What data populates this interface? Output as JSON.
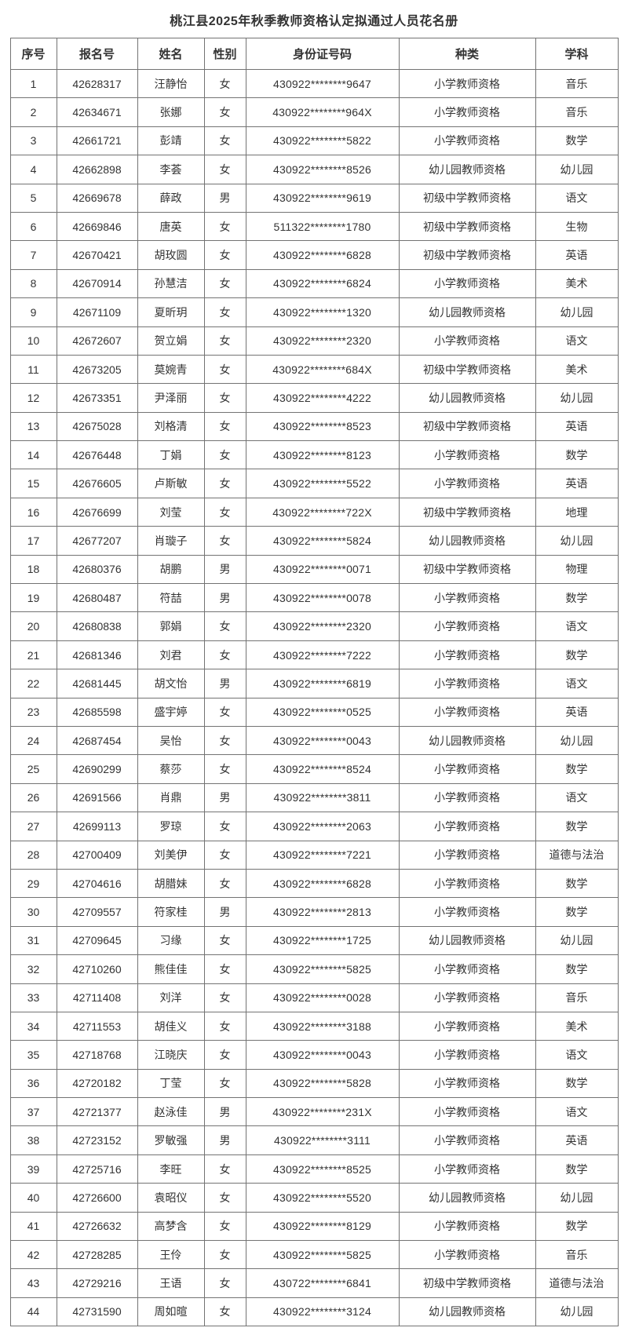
{
  "page": {
    "title": "桃江县2025年秋季教师资格认定拟通过人员花名册"
  },
  "table": {
    "headers": [
      "序号",
      "报名号",
      "姓名",
      "性别",
      "身份证号码",
      "种类",
      "学科"
    ],
    "rows": [
      [
        "1",
        "42628317",
        "汪静怡",
        "女",
        "430922********9647",
        "小学教师资格",
        "音乐"
      ],
      [
        "2",
        "42634671",
        "张娜",
        "女",
        "430922********964X",
        "小学教师资格",
        "音乐"
      ],
      [
        "3",
        "42661721",
        "彭靖",
        "女",
        "430922********5822",
        "小学教师资格",
        "数学"
      ],
      [
        "4",
        "42662898",
        "李荟",
        "女",
        "430922********8526",
        "幼儿园教师资格",
        "幼儿园"
      ],
      [
        "5",
        "42669678",
        "薛政",
        "男",
        "430922********9619",
        "初级中学教师资格",
        "语文"
      ],
      [
        "6",
        "42669846",
        "唐英",
        "女",
        "511322********1780",
        "初级中学教师资格",
        "生物"
      ],
      [
        "7",
        "42670421",
        "胡玫圆",
        "女",
        "430922********6828",
        "初级中学教师资格",
        "英语"
      ],
      [
        "8",
        "42670914",
        "孙慧洁",
        "女",
        "430922********6824",
        "小学教师资格",
        "美术"
      ],
      [
        "9",
        "42671109",
        "夏昕玥",
        "女",
        "430922********1320",
        "幼儿园教师资格",
        "幼儿园"
      ],
      [
        "10",
        "42672607",
        "贺立娟",
        "女",
        "430922********2320",
        "小学教师资格",
        "语文"
      ],
      [
        "11",
        "42673205",
        "莫婉青",
        "女",
        "430922********684X",
        "初级中学教师资格",
        "美术"
      ],
      [
        "12",
        "42673351",
        "尹泽丽",
        "女",
        "430922********4222",
        "幼儿园教师资格",
        "幼儿园"
      ],
      [
        "13",
        "42675028",
        "刘格清",
        "女",
        "430922********8523",
        "初级中学教师资格",
        "英语"
      ],
      [
        "14",
        "42676448",
        "丁娟",
        "女",
        "430922********8123",
        "小学教师资格",
        "数学"
      ],
      [
        "15",
        "42676605",
        "卢斯敏",
        "女",
        "430922********5522",
        "小学教师资格",
        "英语"
      ],
      [
        "16",
        "42676699",
        "刘莹",
        "女",
        "430922********722X",
        "初级中学教师资格",
        "地理"
      ],
      [
        "17",
        "42677207",
        "肖璇子",
        "女",
        "430922********5824",
        "幼儿园教师资格",
        "幼儿园"
      ],
      [
        "18",
        "42680376",
        "胡鹏",
        "男",
        "430922********0071",
        "初级中学教师资格",
        "物理"
      ],
      [
        "19",
        "42680487",
        "符喆",
        "男",
        "430922********0078",
        "小学教师资格",
        "数学"
      ],
      [
        "20",
        "42680838",
        "郭娟",
        "女",
        "430922********2320",
        "小学教师资格",
        "语文"
      ],
      [
        "21",
        "42681346",
        "刘君",
        "女",
        "430922********7222",
        "小学教师资格",
        "数学"
      ],
      [
        "22",
        "42681445",
        "胡文怡",
        "男",
        "430922********6819",
        "小学教师资格",
        "语文"
      ],
      [
        "23",
        "42685598",
        "盛宇婷",
        "女",
        "430922********0525",
        "小学教师资格",
        "英语"
      ],
      [
        "24",
        "42687454",
        "吴怡",
        "女",
        "430922********0043",
        "幼儿园教师资格",
        "幼儿园"
      ],
      [
        "25",
        "42690299",
        "蔡莎",
        "女",
        "430922********8524",
        "小学教师资格",
        "数学"
      ],
      [
        "26",
        "42691566",
        "肖鼎",
        "男",
        "430922********3811",
        "小学教师资格",
        "语文"
      ],
      [
        "27",
        "42699113",
        "罗琼",
        "女",
        "430922********2063",
        "小学教师资格",
        "数学"
      ],
      [
        "28",
        "42700409",
        "刘美伊",
        "女",
        "430922********7221",
        "小学教师资格",
        "道德与法治"
      ],
      [
        "29",
        "42704616",
        "胡腊妹",
        "女",
        "430922********6828",
        "小学教师资格",
        "数学"
      ],
      [
        "30",
        "42709557",
        "符家桂",
        "男",
        "430922********2813",
        "小学教师资格",
        "数学"
      ],
      [
        "31",
        "42709645",
        "习缘",
        "女",
        "430922********1725",
        "幼儿园教师资格",
        "幼儿园"
      ],
      [
        "32",
        "42710260",
        "熊佳佳",
        "女",
        "430922********5825",
        "小学教师资格",
        "数学"
      ],
      [
        "33",
        "42711408",
        "刘洋",
        "女",
        "430922********0028",
        "小学教师资格",
        "音乐"
      ],
      [
        "34",
        "42711553",
        "胡佳义",
        "女",
        "430922********3188",
        "小学教师资格",
        "美术"
      ],
      [
        "35",
        "42718768",
        "江晓庆",
        "女",
        "430922********0043",
        "小学教师资格",
        "语文"
      ],
      [
        "36",
        "42720182",
        "丁莹",
        "女",
        "430922********5828",
        "小学教师资格",
        "数学"
      ],
      [
        "37",
        "42721377",
        "赵泳佳",
        "男",
        "430922********231X",
        "小学教师资格",
        "语文"
      ],
      [
        "38",
        "42723152",
        "罗敏强",
        "男",
        "430922********3111",
        "小学教师资格",
        "英语"
      ],
      [
        "39",
        "42725716",
        "李旺",
        "女",
        "430922********8525",
        "小学教师资格",
        "数学"
      ],
      [
        "40",
        "42726600",
        "袁昭仪",
        "女",
        "430922********5520",
        "幼儿园教师资格",
        "幼儿园"
      ],
      [
        "41",
        "42726632",
        "高梦含",
        "女",
        "430922********8129",
        "小学教师资格",
        "数学"
      ],
      [
        "42",
        "42728285",
        "王伶",
        "女",
        "430922********5825",
        "小学教师资格",
        "音乐"
      ],
      [
        "43",
        "42729216",
        "王语",
        "女",
        "430722********6841",
        "初级中学教师资格",
        "道德与法治"
      ],
      [
        "44",
        "42731590",
        "周如暄",
        "女",
        "430922********3124",
        "幼儿园教师资格",
        "幼儿园"
      ]
    ]
  }
}
